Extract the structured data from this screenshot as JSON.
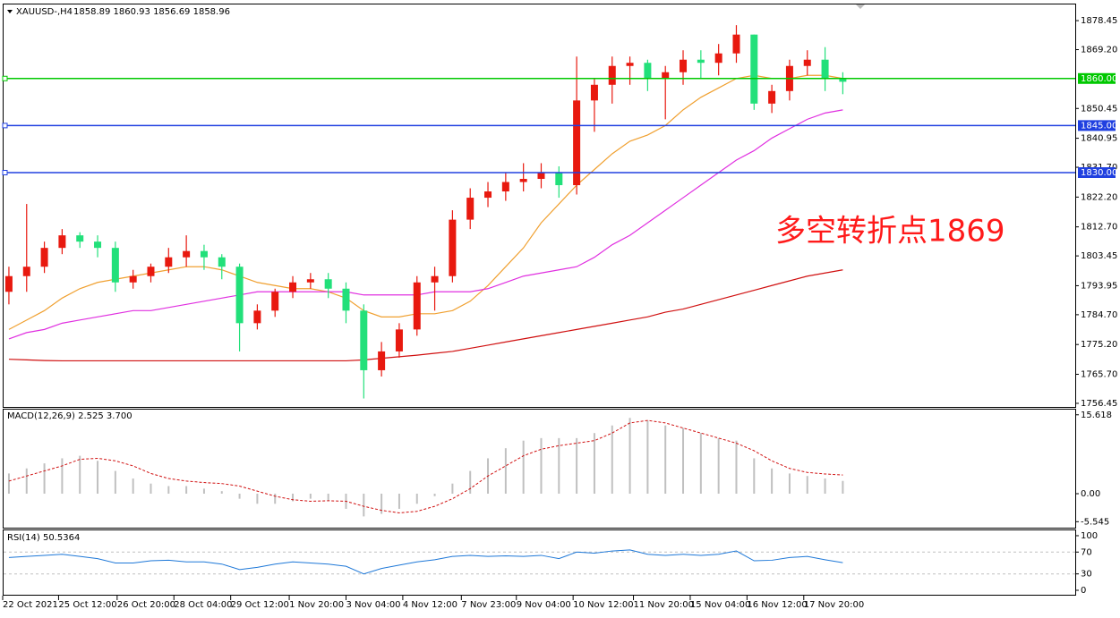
{
  "chart_data": [
    {
      "type": "candlestick",
      "title": "XAUUSD-,H4",
      "ohlc_header": "1858.89 1860.93 1856.69 1858.96",
      "annotation": "多空转折点1869",
      "annotation_color": "#ff1a1a",
      "up_color": "#e8190f",
      "down_color": "#22e07a",
      "open": [
        1792,
        1797,
        1800,
        1806,
        1810,
        1808,
        1806,
        1795,
        1797,
        1800,
        1803,
        1805,
        1803,
        1800,
        1782,
        1786,
        1792,
        1795,
        1796,
        1793,
        1786,
        1767,
        1773,
        1780,
        1795,
        1797,
        1815,
        1822,
        1824,
        1827,
        1828,
        1830,
        1826,
        1853,
        1858,
        1864,
        1865,
        1860,
        1862,
        1866,
        1865,
        1868,
        1874,
        1852,
        1856,
        1864,
        1866,
        1860
      ],
      "high": [
        1800,
        1820,
        1808,
        1812,
        1811,
        1810,
        1808,
        1799,
        1801,
        1806,
        1810,
        1807,
        1804,
        1801,
        1788,
        1793,
        1797,
        1798,
        1798,
        1795,
        1788,
        1776,
        1782,
        1797,
        1800,
        1818,
        1825,
        1827,
        1830,
        1833,
        1833,
        1832,
        1867,
        1860,
        1867,
        1867,
        1866,
        1864,
        1869,
        1869,
        1871,
        1877,
        1874,
        1858,
        1866,
        1869,
        1870,
        1862
      ],
      "low": [
        1788,
        1792,
        1798,
        1804,
        1806,
        1803,
        1792,
        1793,
        1795,
        1798,
        1800,
        1799,
        1796,
        1773,
        1780,
        1784,
        1790,
        1793,
        1790,
        1782,
        1758,
        1765,
        1771,
        1778,
        1786,
        1795,
        1812,
        1819,
        1821,
        1824,
        1825,
        1822,
        1823,
        1843,
        1852,
        1858,
        1856,
        1847,
        1858,
        1860,
        1861,
        1865,
        1850,
        1849,
        1853,
        1861,
        1856,
        1855
      ],
      "close": [
        1797,
        1800,
        1806,
        1810,
        1808,
        1806,
        1795,
        1797,
        1800,
        1803,
        1805,
        1803,
        1800,
        1782,
        1786,
        1792,
        1795,
        1796,
        1793,
        1786,
        1767,
        1773,
        1780,
        1795,
        1797,
        1815,
        1822,
        1824,
        1827,
        1828,
        1830,
        1826,
        1853,
        1858,
        1864,
        1865,
        1860,
        1862,
        1866,
        1865,
        1868,
        1874,
        1852,
        1856,
        1864,
        1866,
        1860,
        1858.96
      ],
      "series": [
        {
          "color": "#f0a030",
          "values": [
            1780,
            1783,
            1786,
            1790,
            1793,
            1795,
            1796,
            1797,
            1798,
            1799,
            1800,
            1800,
            1799,
            1797,
            1795,
            1794,
            1793,
            1793,
            1792,
            1790,
            1786,
            1784,
            1784,
            1785,
            1785,
            1786,
            1789,
            1794,
            1800,
            1806,
            1814,
            1820,
            1826,
            1831,
            1836,
            1840,
            1842,
            1845,
            1850,
            1854,
            1857,
            1860,
            1861,
            1860,
            1860,
            1861,
            1861,
            1860
          ]
        },
        {
          "color": "#e030e0",
          "values": [
            1777,
            1779,
            1780,
            1782,
            1783,
            1784,
            1785,
            1786,
            1786,
            1787,
            1788,
            1789,
            1790,
            1791,
            1792,
            1792,
            1792,
            1792,
            1792,
            1792,
            1791,
            1791,
            1791,
            1791,
            1792,
            1792,
            1792,
            1793,
            1795,
            1797,
            1798,
            1799,
            1800,
            1803,
            1807,
            1810,
            1814,
            1818,
            1822,
            1826,
            1830,
            1834,
            1837,
            1841,
            1844,
            1847,
            1849,
            1850
          ]
        },
        {
          "color": "#d01010",
          "values": [
            1770.5,
            1770.3,
            1770.1,
            1770,
            1770,
            1770,
            1770,
            1770,
            1770,
            1770,
            1770,
            1770,
            1770,
            1770,
            1770,
            1770,
            1770,
            1770,
            1770,
            1770,
            1770.3,
            1770.8,
            1771.3,
            1771.8,
            1772.4,
            1773,
            1774,
            1775,
            1776,
            1777,
            1778,
            1779,
            1780,
            1781,
            1782,
            1783,
            1784,
            1785.5,
            1786.5,
            1788,
            1789.5,
            1791,
            1792.5,
            1794,
            1795.5,
            1797,
            1798,
            1799
          ]
        }
      ],
      "levels": [
        {
          "value": 1860,
          "label": "1860.00",
          "color": "#00c800"
        },
        {
          "value": 1845,
          "label": "1845.00",
          "color": "#2040e0"
        },
        {
          "value": 1830,
          "label": "1830.00",
          "color": "#2040e0"
        }
      ],
      "ylim": [
        1755.3,
        1883.6
      ],
      "yticks": [
        1878.45,
        {
          "value": 1869.2,
          "label": "1869.20"
        },
        1850.45,
        1840.95,
        {
          "value": 1831.7,
          "label": "1831.70"
        },
        {
          "value": 1822.2,
          "label": "1822.20"
        },
        {
          "value": 1812.7,
          "label": "1812.70"
        },
        1803.45,
        1793.95,
        {
          "value": 1784.7,
          "label": "1784.70"
        },
        {
          "value": 1775.2,
          "label": "1775.20"
        },
        {
          "value": 1765.7,
          "label": "1765.70"
        },
        1756.45
      ],
      "xlim": [
        -0.3,
        60.1
      ],
      "xticks": [
        {
          "value": -0.35,
          "label": "22 Oct 2021"
        },
        {
          "value": 2.8,
          "label": "25 Oct 12:00"
        },
        {
          "value": 6.1,
          "label": "26 Oct 20:00"
        },
        {
          "value": 9.3,
          "label": "28 Oct 04:00"
        },
        {
          "value": 12.5,
          "label": "29 Oct 12:00"
        },
        {
          "value": 15.8,
          "label": "1 Nov 20:00"
        },
        {
          "value": 19,
          "label": "3 Nov 04:00"
        },
        {
          "value": 22.2,
          "label": "4 Nov 12:00"
        },
        {
          "value": 25.5,
          "label": "7 Nov 23:00"
        },
        {
          "value": 28.6,
          "label": "9 Nov 04:00"
        },
        {
          "value": 31.8,
          "label": "10 Nov 12:00"
        },
        {
          "value": 35.2,
          "label": "11 Nov 20:00"
        },
        {
          "value": 38.4,
          "label": "15 Nov 04:00"
        },
        {
          "value": 41.6,
          "label": "16 Nov 12:00"
        },
        {
          "value": 44.8,
          "label": "17 Nov 20:00"
        }
      ]
    },
    {
      "type": "bar",
      "title": "MACD(12,26,9) 2.525 3.700",
      "color": "#c0c0c0",
      "values": [
        4,
        5,
        6,
        7,
        7.5,
        6.5,
        4.5,
        3,
        2,
        1.5,
        1.5,
        1,
        0.5,
        -1,
        -2,
        -2,
        -1.5,
        -1,
        -1.5,
        -3,
        -4.5,
        -4,
        -3,
        -2,
        -0.5,
        2,
        4.5,
        7,
        9,
        10.5,
        11,
        11,
        11,
        12,
        13.5,
        15,
        14.5,
        13.5,
        13,
        12,
        11,
        10.5,
        7,
        5,
        4,
        3.5,
        3,
        2.525
      ],
      "signal": {
        "color": "#d01010",
        "values": [
          2.5,
          3.5,
          4.5,
          5.5,
          6.8,
          7,
          6.5,
          5.5,
          4,
          3,
          2.5,
          2.2,
          2,
          1.5,
          0.5,
          -0.5,
          -1.2,
          -1.5,
          -1.4,
          -1.5,
          -2.5,
          -3.3,
          -3.8,
          -3.5,
          -2.5,
          -1,
          1,
          3.5,
          5.5,
          7.5,
          8.8,
          9.5,
          10,
          10.5,
          12,
          14,
          14.5,
          14,
          13,
          12,
          11,
          10,
          8.5,
          6.5,
          5,
          4.2,
          3.9,
          3.7
        ]
      },
      "ylim": [
        -6.73,
        16.64
      ],
      "yticks": [
        15.618,
        {
          "value": 0,
          "label": "0.00"
        },
        -5.545
      ]
    },
    {
      "type": "line",
      "title": "RSI(14) 50.5364",
      "color": "#1e78d8",
      "values": [
        60,
        62,
        64,
        66,
        62,
        58,
        50,
        50,
        54,
        55,
        52,
        52,
        48,
        38,
        42,
        48,
        52,
        50,
        48,
        44,
        30,
        40,
        46,
        52,
        56,
        62,
        64,
        62,
        63,
        62,
        64,
        58,
        70,
        68,
        72,
        74,
        66,
        64,
        66,
        64,
        66,
        72,
        54,
        55,
        60,
        62,
        56,
        50.5364
      ],
      "levels": [
        70,
        30
      ],
      "ylim": [
        -8.2,
        109.8
      ],
      "yticks": [
        100,
        70,
        30,
        0
      ]
    }
  ]
}
